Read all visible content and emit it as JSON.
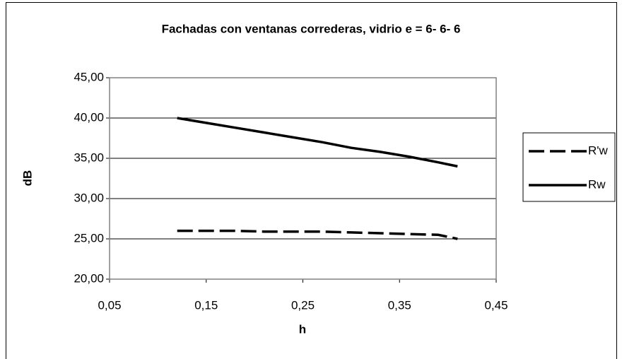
{
  "chart_data": {
    "type": "line",
    "title": "Fachadas con ventanas correderas, vidrio e = 6- 6- 6",
    "x_label": "h",
    "y_label": "dB",
    "x": [
      0.12,
      0.15,
      0.18,
      0.21,
      0.24,
      0.27,
      0.3,
      0.33,
      0.36,
      0.39,
      0.41
    ],
    "series": [
      {
        "name": "R'w",
        "color": "#000000",
        "dash": true,
        "values": [
          26.0,
          26.0,
          26.0,
          25.9,
          25.9,
          25.9,
          25.8,
          25.7,
          25.6,
          25.5,
          25.0
        ]
      },
      {
        "name": "Rw",
        "color": "#000000",
        "dash": false,
        "values": [
          40.0,
          39.4,
          38.8,
          38.2,
          37.6,
          37.0,
          36.3,
          35.8,
          35.2,
          34.5,
          34.0
        ]
      }
    ],
    "xlim": [
      0.05,
      0.45
    ],
    "xticks": [
      {
        "value": 0.05,
        "label": "0,05"
      },
      {
        "value": 0.15,
        "label": "0,15"
      },
      {
        "value": 0.25,
        "label": "0,25"
      },
      {
        "value": 0.35,
        "label": "0,35"
      },
      {
        "value": 0.45,
        "label": "0,45"
      }
    ],
    "ylim": [
      20,
      45
    ],
    "yticks": [
      {
        "value": 20,
        "label": "20,00"
      },
      {
        "value": 25,
        "label": "25,00"
      },
      {
        "value": 30,
        "label": "30,00"
      },
      {
        "value": 35,
        "label": "35,00"
      },
      {
        "value": 40,
        "label": "40,00"
      },
      {
        "value": 45,
        "label": "45,00"
      }
    ],
    "grid": true,
    "legend": "right"
  }
}
